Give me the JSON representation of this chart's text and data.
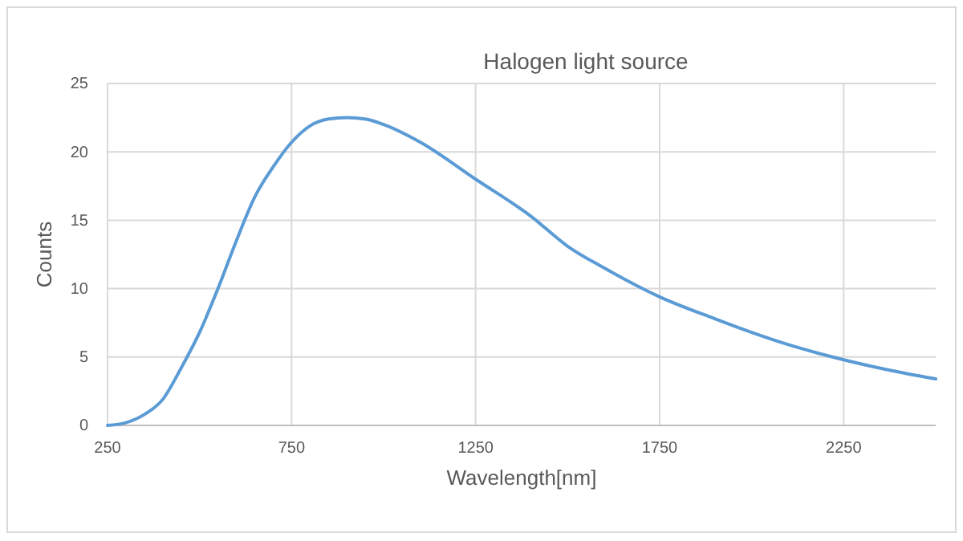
{
  "chart_data": {
    "type": "line",
    "title": "Halogen light source",
    "xlabel": "Wavelength[nm]",
    "ylabel": "Counts",
    "xlim": [
      250,
      2500
    ],
    "xticks": [
      250,
      750,
      1250,
      1750,
      2250
    ],
    "ylim": [
      0,
      25
    ],
    "yticks": [
      0,
      5,
      10,
      15,
      20,
      25
    ],
    "grid": true,
    "series": [
      {
        "color": "#5b9bd5",
        "x": [
          250,
          300,
          350,
          400,
          450,
          500,
          550,
          600,
          650,
          700,
          750,
          800,
          850,
          900,
          950,
          1000,
          1100,
          1250,
          1400,
          1500,
          1600,
          1750,
          1900,
          2000,
          2100,
          2250,
          2400,
          2500
        ],
        "values": [
          0,
          0.2,
          0.8,
          1.9,
          4.2,
          6.8,
          10,
          13.5,
          16.7,
          18.9,
          20.7,
          21.9,
          22.4,
          22.5,
          22.4,
          22,
          20.7,
          18,
          15.3,
          13.1,
          11.5,
          9.4,
          7.8,
          6.8,
          5.9,
          4.8,
          3.9,
          3.4
        ]
      }
    ]
  }
}
